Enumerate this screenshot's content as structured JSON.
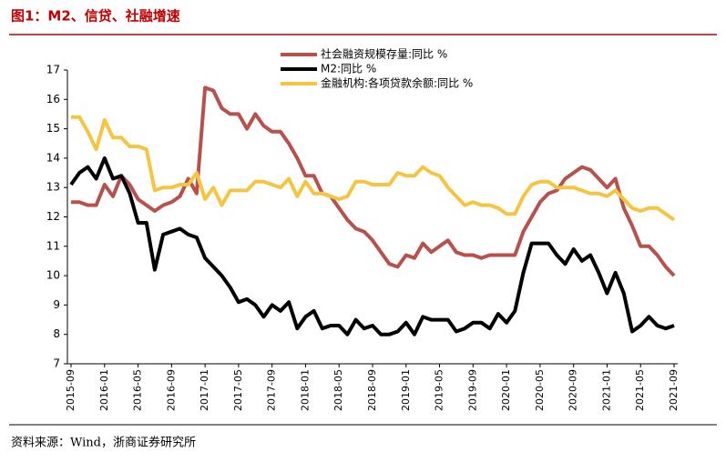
{
  "title": "图1：M2、信贷、社融增速",
  "source": "资料来源：Wind，浙商证券研究所",
  "chart_data": {
    "type": "line",
    "categories": [
      "2015-09",
      null,
      null,
      null,
      "2016-01",
      null,
      null,
      null,
      "2016-05",
      null,
      null,
      null,
      "2016-09",
      null,
      null,
      null,
      "2017-01",
      null,
      null,
      null,
      "2017-05",
      null,
      null,
      null,
      "2017-09",
      null,
      null,
      null,
      "2018-01",
      null,
      null,
      null,
      "2018-05",
      null,
      null,
      null,
      "2018-09",
      null,
      null,
      null,
      "2019-01",
      null,
      null,
      null,
      "2019-05",
      null,
      null,
      null,
      "2019-09",
      null,
      null,
      null,
      "2020-01",
      null,
      null,
      null,
      "2020-05",
      null,
      null,
      null,
      "2020-09",
      null,
      null,
      null,
      "2021-01",
      null,
      null,
      null,
      "2021-05",
      null,
      null,
      null,
      "2021-09"
    ],
    "series": [
      {
        "name": "社会融资规模存量:同比 %",
        "color": "#b8504c",
        "values": [
          12.5,
          12.5,
          12.4,
          12.4,
          13.1,
          12.7,
          13.4,
          13.1,
          12.6,
          12.4,
          12.2,
          12.4,
          12.5,
          12.7,
          13.3,
          12.8,
          16.4,
          16.3,
          15.7,
          15.5,
          15.5,
          15.0,
          15.5,
          15.1,
          14.9,
          14.9,
          14.5,
          14.0,
          13.4,
          13.4,
          12.8,
          12.7,
          12.3,
          11.9,
          11.6,
          11.5,
          11.2,
          10.8,
          10.4,
          10.3,
          10.7,
          10.6,
          11.1,
          10.8,
          11.0,
          11.2,
          10.8,
          10.7,
          10.7,
          10.6,
          10.7,
          10.7,
          10.7,
          10.7,
          11.5,
          12.0,
          12.5,
          12.8,
          12.9,
          13.3,
          13.5,
          13.7,
          13.6,
          13.3,
          13.0,
          13.3,
          12.3,
          11.7,
          11.0,
          11.0,
          10.7,
          10.3,
          10.0
        ]
      },
      {
        "name": "M2:同比 %",
        "color": "#000000",
        "values": [
          13.1,
          13.5,
          13.7,
          13.3,
          14.0,
          13.3,
          13.4,
          12.8,
          11.8,
          11.8,
          10.2,
          11.4,
          11.5,
          11.6,
          11.4,
          11.3,
          10.6,
          10.3,
          10.0,
          9.6,
          9.1,
          9.2,
          9.0,
          8.6,
          9.0,
          8.8,
          9.1,
          8.2,
          8.6,
          8.8,
          8.2,
          8.3,
          8.3,
          8.0,
          8.5,
          8.2,
          8.3,
          8.0,
          8.0,
          8.1,
          8.4,
          8.0,
          8.6,
          8.5,
          8.5,
          8.5,
          8.1,
          8.2,
          8.4,
          8.4,
          8.2,
          8.7,
          8.4,
          8.8,
          10.1,
          11.1,
          11.1,
          11.1,
          10.7,
          10.4,
          10.9,
          10.5,
          10.7,
          10.1,
          9.4,
          10.1,
          9.4,
          8.1,
          8.3,
          8.6,
          8.3,
          8.2,
          8.3
        ]
      },
      {
        "name": "金融机构:各项贷款余额:同比 %",
        "color": "#f5c542",
        "values": [
          15.4,
          15.4,
          14.9,
          14.3,
          15.3,
          14.7,
          14.7,
          14.4,
          14.4,
          14.3,
          12.9,
          13.0,
          13.0,
          13.1,
          13.1,
          13.5,
          12.6,
          13.0,
          12.4,
          12.9,
          12.9,
          12.9,
          13.2,
          13.2,
          13.1,
          13.0,
          13.3,
          12.7,
          13.2,
          12.8,
          12.8,
          12.7,
          12.6,
          12.7,
          13.2,
          13.2,
          13.1,
          13.1,
          13.1,
          13.5,
          13.4,
          13.4,
          13.7,
          13.5,
          13.4,
          13.0,
          12.7,
          12.4,
          12.5,
          12.4,
          12.4,
          12.3,
          12.1,
          12.1,
          12.7,
          13.1,
          13.2,
          13.2,
          13.0,
          13.0,
          13.0,
          12.9,
          12.8,
          12.8,
          12.7,
          12.9,
          12.6,
          12.3,
          12.2,
          12.3,
          12.3,
          12.1,
          11.9
        ]
      }
    ],
    "ylim": [
      7,
      17
    ],
    "yticks": [
      7,
      8,
      9,
      10,
      11,
      12,
      13,
      14,
      15,
      16,
      17
    ]
  }
}
